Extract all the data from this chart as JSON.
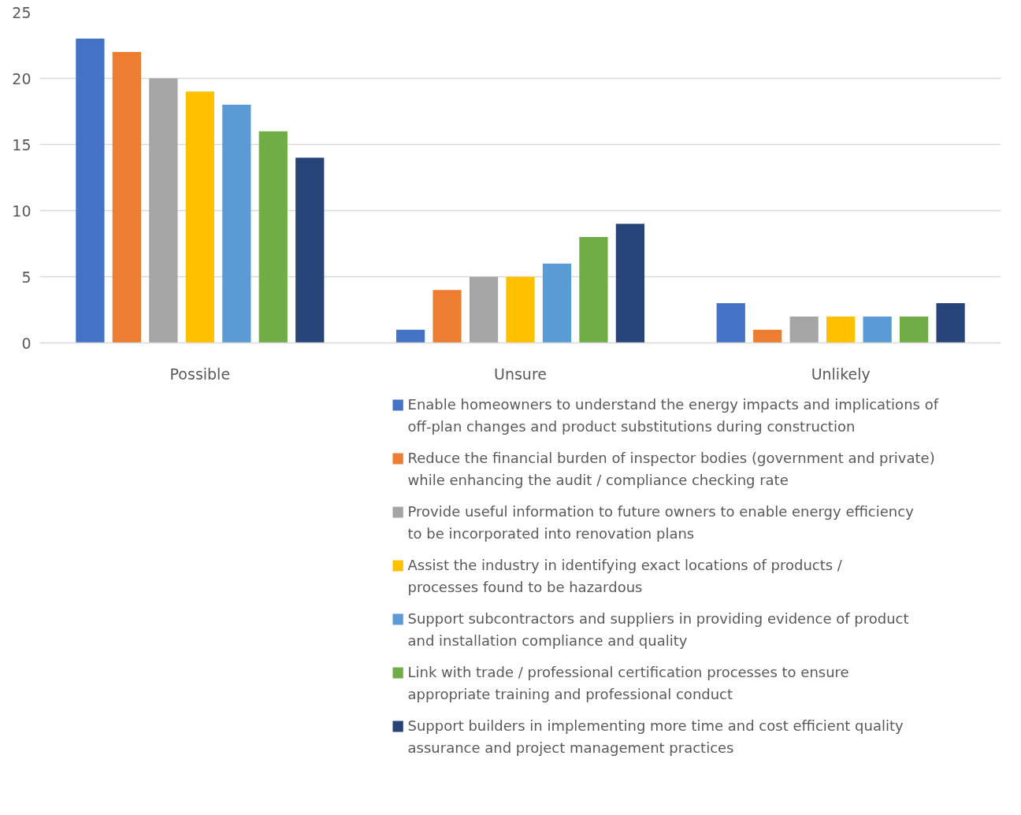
{
  "chart_data": {
    "type": "bar",
    "categories": [
      "Possible",
      "Unsure",
      "Unlikely"
    ],
    "series": [
      {
        "name": "Enable homeowners to understand the energy impacts and implications of off-plan changes and product substitutions during construction",
        "color": "#4472c4",
        "values": [
          23,
          1,
          3
        ]
      },
      {
        "name": "Reduce the financial burden of inspector bodies (government and private) while enhancing the audit / compliance checking rate",
        "color": "#ed7d31",
        "values": [
          22,
          4,
          1
        ]
      },
      {
        "name": "Provide useful information to future owners to enable energy efficiency to be incorporated into renovation plans",
        "color": "#a5a5a5",
        "values": [
          20,
          5,
          2
        ]
      },
      {
        "name": "Assist the industry in identifying exact locations of products / processes found to be hazardous",
        "color": "#ffc000",
        "values": [
          19,
          5,
          2
        ]
      },
      {
        "name": "Support subcontractors and suppliers in providing evidence of product and installation compliance and quality",
        "color": "#5b9bd5",
        "values": [
          18,
          6,
          2
        ]
      },
      {
        "name": "Link with trade / professional certification processes to ensure appropriate training and professional conduct",
        "color": "#70ad47",
        "values": [
          16,
          8,
          2
        ]
      },
      {
        "name": "Support builders in implementing more time and cost efficient quality assurance and project management practices",
        "color": "#264478",
        "values": [
          14,
          9,
          3
        ]
      }
    ],
    "ylim": [
      0,
      25
    ],
    "yticks": [
      0,
      5,
      10,
      15,
      20,
      25
    ],
    "grid": "y",
    "legend": "bottom"
  }
}
